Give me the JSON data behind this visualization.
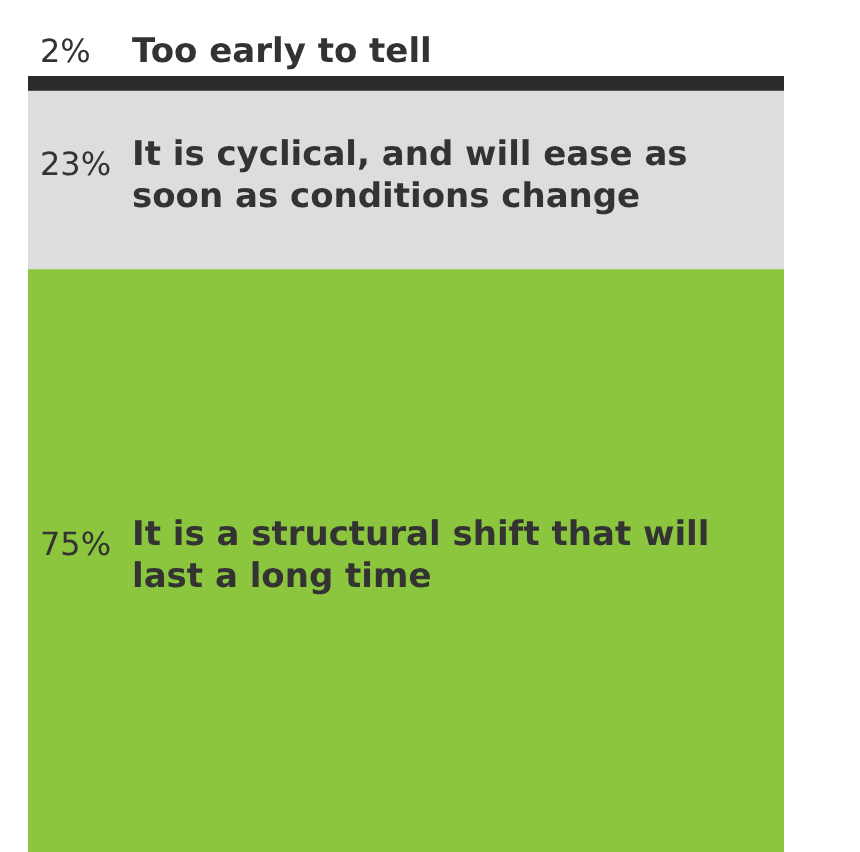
{
  "chart_data": {
    "type": "bar",
    "stacked": true,
    "categories": [
      null
    ],
    "tick_labels": false,
    "legend": false,
    "series": [
      {
        "name": "It is a structural shift that will last a long time",
        "color": "#8cc63f",
        "values": [
          75
        ],
        "value_labels": [
          "75%"
        ]
      },
      {
        "name": "It is cyclical, and will ease as soon as conditions change",
        "color": "#dddddf",
        "values": [
          23
        ],
        "value_labels": [
          "23%"
        ]
      },
      {
        "name": "Too early to tell",
        "color": "#2b2b2b",
        "values": [
          2
        ],
        "value_labels": [
          "2%"
        ]
      }
    ]
  }
}
